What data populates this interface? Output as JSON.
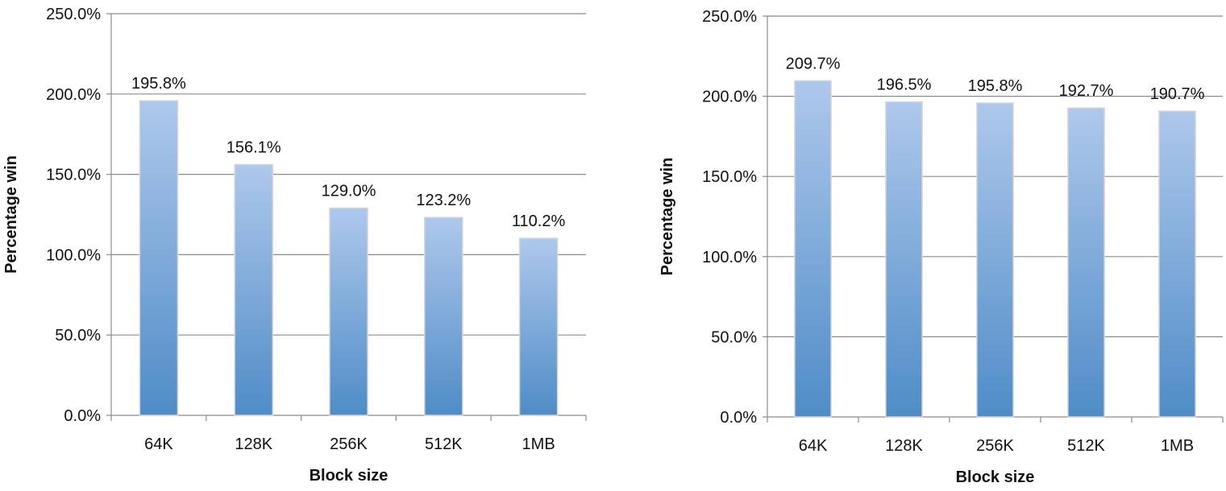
{
  "chart_data": [
    {
      "type": "bar",
      "categories": [
        "64K",
        "128K",
        "256K",
        "512K",
        "1MB"
      ],
      "values": [
        195.8,
        156.1,
        129.0,
        123.2,
        110.2
      ],
      "data_labels": [
        "195.8%",
        "156.1%",
        "129.0%",
        "123.2%",
        "110.2%"
      ],
      "xlabel": "Block size",
      "ylabel": "Percentage win",
      "ylim": [
        0,
        250
      ],
      "yticks": [
        0,
        50,
        100,
        150,
        200,
        250
      ],
      "ytick_labels": [
        "0.0%",
        "50.0%",
        "100.0%",
        "150.0%",
        "200.0%",
        "250.0%"
      ],
      "grid": true,
      "colors": {
        "bar_top": "#aec8eb",
        "bar_bottom": "#4f8cc7",
        "bar_edge": "#d7d7d7"
      }
    },
    {
      "type": "bar",
      "categories": [
        "64K",
        "128K",
        "256K",
        "512K",
        "1MB"
      ],
      "values": [
        209.7,
        196.5,
        195.8,
        192.7,
        190.7
      ],
      "data_labels": [
        "209.7%",
        "196.5%",
        "195.8%",
        "192.7%",
        "190.7%"
      ],
      "xlabel": "Block size",
      "ylabel": "Percentage win",
      "ylim": [
        0,
        250
      ],
      "yticks": [
        0,
        50,
        100,
        150,
        200,
        250
      ],
      "ytick_labels": [
        "0.0%",
        "50.0%",
        "100.0%",
        "150.0%",
        "200.0%",
        "250.0%"
      ],
      "grid": true,
      "colors": {
        "bar_top": "#aec8eb",
        "bar_bottom": "#4f8cc7",
        "bar_edge": "#d7d7d7"
      }
    }
  ]
}
